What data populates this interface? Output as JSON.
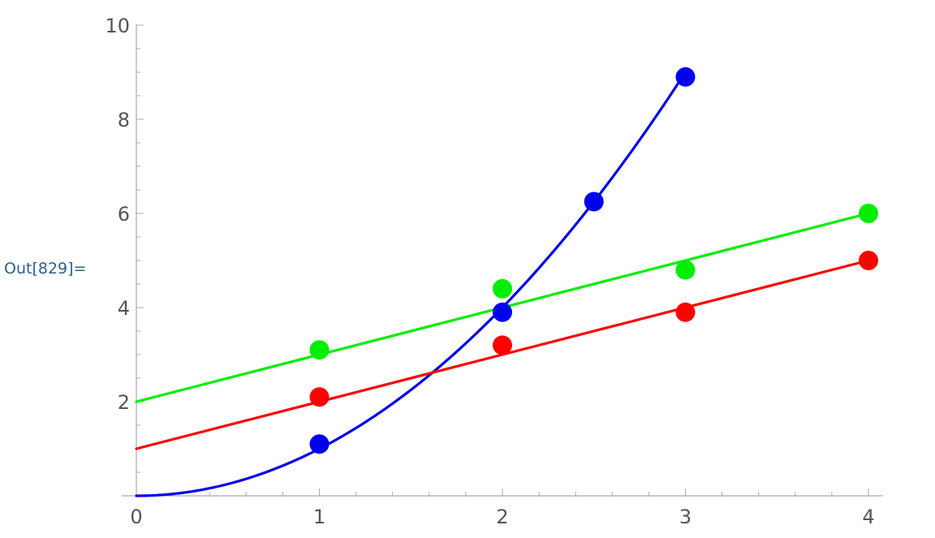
{
  "cell": {
    "out_label": "Out[829]="
  },
  "chart_data": {
    "type": "scatter",
    "title": "",
    "xlabel": "",
    "ylabel": "",
    "xlim": [
      0,
      4.1
    ],
    "ylim": [
      0,
      10
    ],
    "x_ticks": [
      0,
      1,
      2,
      3,
      4
    ],
    "y_ticks": [
      2,
      4,
      6,
      8,
      10
    ],
    "x_tick_labels": [
      "0",
      "1",
      "2",
      "3",
      "4"
    ],
    "y_tick_labels": [
      "2",
      "4",
      "6",
      "8",
      "10"
    ],
    "grid": false,
    "series": [
      {
        "color": "#0000ee",
        "points": [
          [
            1,
            1.1
          ],
          [
            2,
            3.9
          ],
          [
            2.5,
            6.25
          ],
          [
            3,
            8.9
          ]
        ],
        "fit": {
          "kind": "quadratic",
          "a": 1,
          "b": 0,
          "c": 0,
          "x_range": [
            0,
            3
          ]
        }
      },
      {
        "color": "#ff0000",
        "points": [
          [
            1,
            2.1
          ],
          [
            2,
            3.2
          ],
          [
            3,
            3.9
          ],
          [
            4,
            5.0
          ]
        ],
        "fit": {
          "kind": "linear",
          "slope": 1,
          "intercept": 1,
          "x_range": [
            0,
            4
          ]
        }
      },
      {
        "color": "#00ee00",
        "points": [
          [
            1,
            3.1
          ],
          [
            2,
            4.4
          ],
          [
            3,
            4.8
          ],
          [
            4,
            6.0
          ]
        ],
        "fit": {
          "kind": "linear",
          "slope": 1,
          "intercept": 2,
          "x_range": [
            0,
            4
          ]
        }
      }
    ]
  }
}
